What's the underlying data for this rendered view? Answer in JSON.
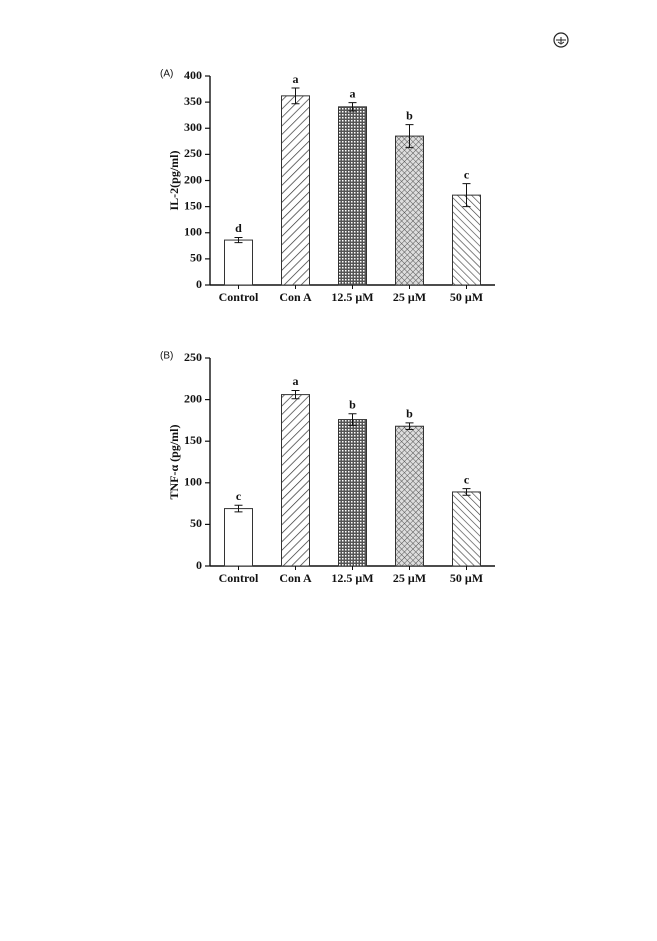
{
  "chart_data": [
    {
      "type": "bar",
      "panel_label": "(A)",
      "y_label": "IL-2(pg/ml)",
      "categories": [
        "Control",
        "Con A",
        "12.5 μM",
        "25 μM",
        "50 μM"
      ],
      "values": [
        86,
        362,
        341,
        285,
        172
      ],
      "errors": [
        5,
        15,
        8,
        22,
        22
      ],
      "annotations": [
        "d",
        "a",
        "a",
        "b",
        "c"
      ],
      "ylim": [
        0,
        400
      ],
      "yticks": [
        0,
        50,
        100,
        150,
        200,
        250,
        300,
        350,
        400
      ],
      "color": "#333333"
    },
    {
      "type": "bar",
      "panel_label": "(B)",
      "y_label": "TNF-α (pg/ml)",
      "categories": [
        "Control",
        "Con A",
        "12.5 μM",
        "25 μM",
        "50 μM"
      ],
      "values": [
        69,
        206,
        176,
        168,
        89
      ],
      "errors": [
        4,
        5,
        7,
        4,
        4
      ],
      "annotations": [
        "c",
        "a",
        "b",
        "b",
        "c"
      ],
      "ylim": [
        0,
        250
      ],
      "yticks": [
        0,
        50,
        100,
        150,
        200,
        250
      ],
      "color": "#333333"
    }
  ]
}
